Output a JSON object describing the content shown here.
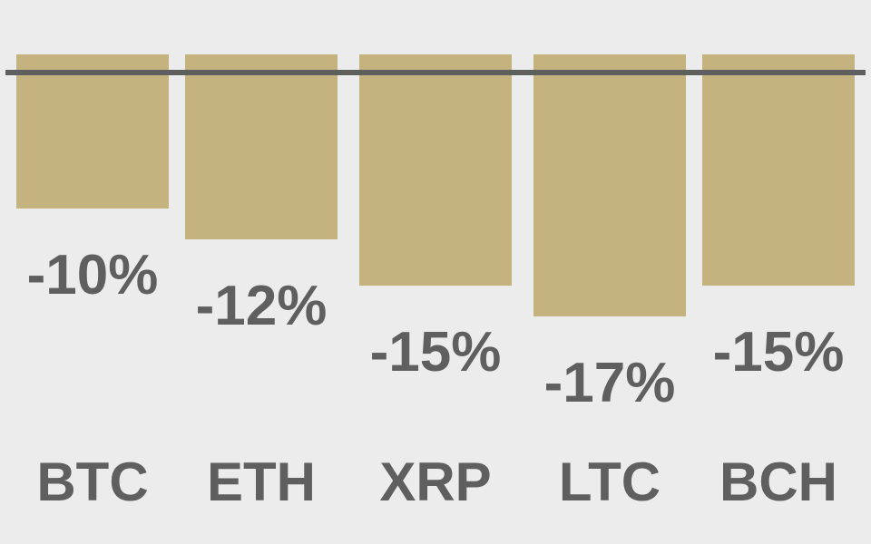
{
  "chart_data": {
    "type": "bar",
    "categories": [
      "BTC",
      "ETH",
      "XRP",
      "LTC",
      "BCH"
    ],
    "values": [
      -10,
      -12,
      -15,
      -17,
      -15
    ],
    "value_labels": [
      "-10%",
      "-12%",
      "-15%",
      "-17%",
      "-15%"
    ],
    "title": "",
    "xlabel": "",
    "ylabel": "",
    "ylim": [
      -18,
      0
    ],
    "grid": false,
    "colors": {
      "bar": "#c5b37f",
      "baseline": "#5f5f5f",
      "text": "#5f5f5f",
      "background": "#ececec"
    }
  }
}
